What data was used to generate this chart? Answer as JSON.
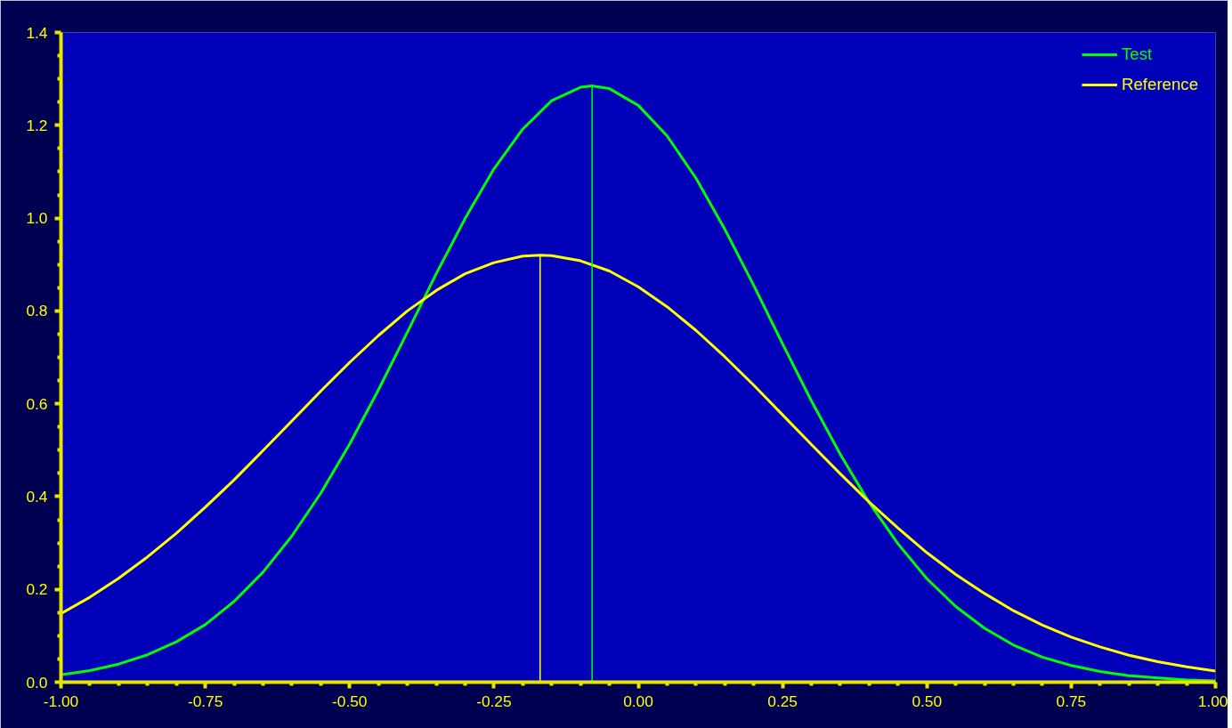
{
  "chart_data": {
    "type": "line",
    "legend": "top right",
    "grid": false,
    "x": [
      -1,
      -0.95,
      -0.9,
      -0.85,
      -0.8,
      -0.75,
      -0.7,
      -0.65,
      -0.6,
      -0.55,
      -0.5,
      -0.45,
      -0.4,
      -0.35,
      -0.3,
      -0.25,
      -0.2,
      -0.15,
      -0.1,
      -0.08,
      -0.05,
      0,
      0.05,
      0.1,
      0.15,
      0.2,
      0.25,
      0.3,
      0.35,
      0.4,
      0.45,
      0.5,
      0.55,
      0.6,
      0.65,
      0.7,
      0.75,
      0.8,
      0.85,
      0.9,
      0.95,
      1
    ],
    "series": [
      {
        "name": "Test",
        "color": "#00ff00",
        "values": [
          0.016,
          0.025,
          0.039,
          0.059,
          0.087,
          0.124,
          0.174,
          0.237,
          0.315,
          0.407,
          0.513,
          0.63,
          0.754,
          0.88,
          0.999,
          1.106,
          1.192,
          1.253,
          1.282,
          1.285,
          1.279,
          1.243,
          1.177,
          1.086,
          0.976,
          0.855,
          0.729,
          0.606,
          0.491,
          0.387,
          0.298,
          0.223,
          0.163,
          0.116,
          0.08,
          0.054,
          0.036,
          0.023,
          0.014,
          0.009,
          0.005,
          0.003
        ]
      },
      {
        "name": "Reference",
        "color": "#ffff00",
        "x": [
          -1,
          -0.95,
          -0.9,
          -0.85,
          -0.8,
          -0.75,
          -0.7,
          -0.65,
          -0.6,
          -0.55,
          -0.5,
          -0.45,
          -0.4,
          -0.35,
          -0.3,
          -0.25,
          -0.2,
          -0.17,
          -0.15,
          -0.1,
          -0.05,
          0,
          0.05,
          0.1,
          0.15,
          0.2,
          0.25,
          0.3,
          0.35,
          0.4,
          0.45,
          0.5,
          0.55,
          0.6,
          0.65,
          0.7,
          0.75,
          0.8,
          0.85,
          0.9,
          0.95,
          1
        ],
        "values": [
          0.148,
          0.183,
          0.224,
          0.27,
          0.321,
          0.377,
          0.436,
          0.499,
          0.563,
          0.627,
          0.689,
          0.747,
          0.8,
          0.844,
          0.88,
          0.904,
          0.918,
          0.92,
          0.919,
          0.908,
          0.886,
          0.852,
          0.809,
          0.758,
          0.701,
          0.64,
          0.576,
          0.512,
          0.449,
          0.388,
          0.332,
          0.279,
          0.232,
          0.191,
          0.154,
          0.123,
          0.097,
          0.076,
          0.058,
          0.044,
          0.033,
          0.024
        ]
      },
      {
        "color": "#00ff00",
        "x": [
          -0.08,
          -0.08
        ],
        "values": [
          0,
          1.285
        ]
      },
      {
        "color": "#ffff00",
        "x": [
          -0.17,
          -0.17
        ],
        "values": [
          0,
          0.92
        ]
      }
    ],
    "xlim": [
      -1,
      1
    ],
    "ylim": [
      0,
      1.4
    ],
    "xticks": [
      {
        "value": -1,
        "label": "-1.00"
      },
      {
        "value": -0.75,
        "label": "-0.75"
      },
      {
        "value": -0.5,
        "label": "-0.50"
      },
      {
        "value": -0.25,
        "label": "-0.25"
      },
      {
        "value": 0,
        "label": "0.00"
      },
      {
        "value": 0.25,
        "label": "0.25"
      },
      {
        "value": 0.5,
        "label": "0.50"
      },
      {
        "value": 0.75,
        "label": "0.75"
      },
      {
        "value": 1,
        "label": "1.00"
      }
    ],
    "yticks": [
      {
        "value": 0,
        "label": "0.0"
      },
      {
        "value": 0.2,
        "label": "0.2"
      },
      {
        "value": 0.4,
        "label": "0.4"
      },
      {
        "value": 0.6,
        "label": "0.6"
      },
      {
        "value": 0.8,
        "label": "0.8"
      },
      {
        "value": 1.0,
        "label": "1.0"
      },
      {
        "value": 1.2,
        "label": "1.2"
      },
      {
        "value": 1.4,
        "label": "1.4"
      }
    ]
  }
}
